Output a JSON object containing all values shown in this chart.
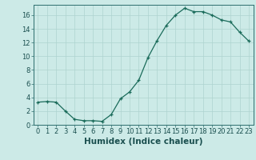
{
  "x": [
    0,
    1,
    2,
    3,
    4,
    5,
    6,
    7,
    8,
    9,
    10,
    11,
    12,
    13,
    14,
    15,
    16,
    17,
    18,
    19,
    20,
    21,
    22,
    23
  ],
  "y": [
    3.3,
    3.4,
    3.3,
    2.0,
    0.8,
    0.6,
    0.6,
    0.5,
    1.5,
    3.8,
    4.8,
    6.5,
    9.8,
    12.3,
    14.5,
    16.0,
    17.0,
    16.5,
    16.5,
    16.0,
    15.3,
    15.0,
    13.5,
    12.2
  ],
  "xlabel": "Humidex (Indice chaleur)",
  "xlim": [
    -0.5,
    23.5
  ],
  "ylim": [
    0,
    17.5
  ],
  "yticks": [
    0,
    2,
    4,
    6,
    8,
    10,
    12,
    14,
    16
  ],
  "xticks": [
    0,
    1,
    2,
    3,
    4,
    5,
    6,
    7,
    8,
    9,
    10,
    11,
    12,
    13,
    14,
    15,
    16,
    17,
    18,
    19,
    20,
    21,
    22,
    23
  ],
  "line_color": "#1a6b5a",
  "marker": "+",
  "bg_color": "#cceae7",
  "grid_color": "#aed4d0",
  "tick_color": "#2d6e6e",
  "label_color": "#1a4f4f",
  "tick_fontsize": 6.0,
  "xlabel_fontsize": 7.5
}
